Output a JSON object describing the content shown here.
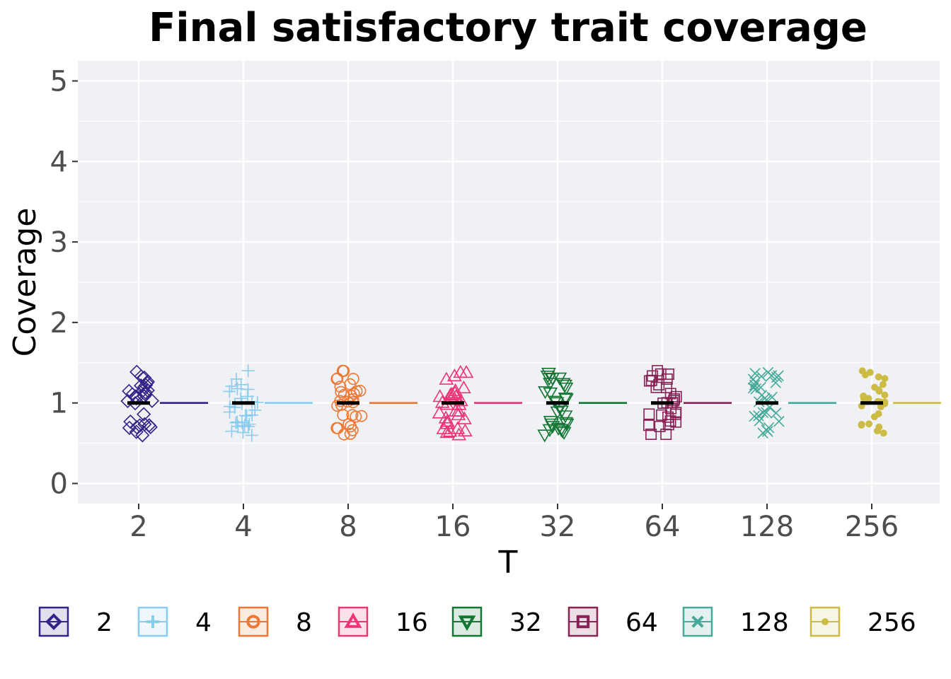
{
  "chart_data": {
    "type": "scatter",
    "title": "Final satisfactory trait coverage",
    "xlabel": "T",
    "ylabel": "Coverage",
    "categories": [
      "2",
      "4",
      "8",
      "16",
      "32",
      "64",
      "128",
      "256"
    ],
    "ylim": [
      -0.25,
      5.25
    ],
    "yticks": [
      0,
      1,
      2,
      3,
      4,
      5
    ],
    "grid": true,
    "legend_position": "bottom",
    "median": 1,
    "series": [
      {
        "name": "2",
        "color": "#332288",
        "marker": "diamond-open",
        "values": [
          1,
          1,
          1,
          1,
          1,
          1,
          1,
          1,
          1,
          1,
          1,
          1,
          1,
          1,
          1,
          1,
          1,
          1,
          1,
          1,
          1,
          1,
          1,
          1,
          1,
          1,
          1,
          1,
          1,
          1
        ]
      },
      {
        "name": "4",
        "color": "#88CCEE",
        "marker": "plus",
        "values": [
          1,
          1,
          1,
          1,
          1,
          1,
          1,
          1,
          1,
          1,
          1,
          1,
          1,
          1,
          1,
          1,
          1,
          1,
          1,
          1,
          1,
          1,
          1,
          1,
          1,
          1,
          1,
          1,
          1,
          1
        ]
      },
      {
        "name": "8",
        "color": "#EE7733",
        "marker": "circle-open",
        "values": [
          1,
          1,
          1,
          1,
          1,
          1,
          1,
          1,
          1,
          1,
          1,
          1,
          1,
          1,
          1,
          1,
          1,
          1,
          1,
          1,
          1,
          1,
          1,
          1,
          1,
          1,
          1,
          1,
          1,
          1
        ]
      },
      {
        "name": "16",
        "color": "#EE3377",
        "marker": "triangle-up-open",
        "values": [
          1,
          1,
          1,
          1,
          1,
          1,
          1,
          1,
          1,
          1,
          1,
          1,
          1,
          1,
          1,
          1,
          1,
          1,
          1,
          1,
          1,
          1,
          1,
          1,
          1,
          1,
          1,
          1,
          1,
          1
        ]
      },
      {
        "name": "32",
        "color": "#117733",
        "marker": "triangle-down-open",
        "values": [
          1,
          1,
          1,
          1,
          1,
          1,
          1,
          1,
          1,
          1,
          1,
          1,
          1,
          1,
          1,
          1,
          1,
          1,
          1,
          1,
          1,
          1,
          1,
          1,
          1,
          1,
          1,
          1,
          1,
          1
        ]
      },
      {
        "name": "64",
        "color": "#882255",
        "marker": "square-open",
        "values": [
          1,
          1,
          1,
          1,
          1,
          1,
          1,
          1,
          1,
          1,
          1,
          1,
          1,
          1,
          1,
          1,
          1,
          1,
          1,
          1,
          1,
          1,
          1,
          1,
          1,
          1,
          1,
          1,
          1,
          1
        ]
      },
      {
        "name": "128",
        "color": "#44AA99",
        "marker": "cross",
        "values": [
          1,
          1,
          1,
          1,
          1,
          1,
          1,
          1,
          1,
          1,
          1,
          1,
          1,
          1,
          1,
          1,
          1,
          1,
          1,
          1,
          1,
          1,
          1,
          1,
          1,
          1,
          1,
          1,
          1,
          1
        ]
      },
      {
        "name": "256",
        "color": "#CCBB44",
        "marker": "circle-filled",
        "values": [
          1,
          1,
          1,
          1,
          1,
          1,
          1,
          1,
          1,
          1,
          1,
          1,
          1,
          1,
          1,
          1,
          1,
          1,
          1,
          1,
          1,
          1,
          1,
          1,
          1,
          1,
          1,
          1,
          1,
          1
        ]
      }
    ]
  },
  "colors": {
    "panel_background": "#F0F1F5",
    "grid": "#FFFFFF",
    "median_bar": "#000000"
  }
}
